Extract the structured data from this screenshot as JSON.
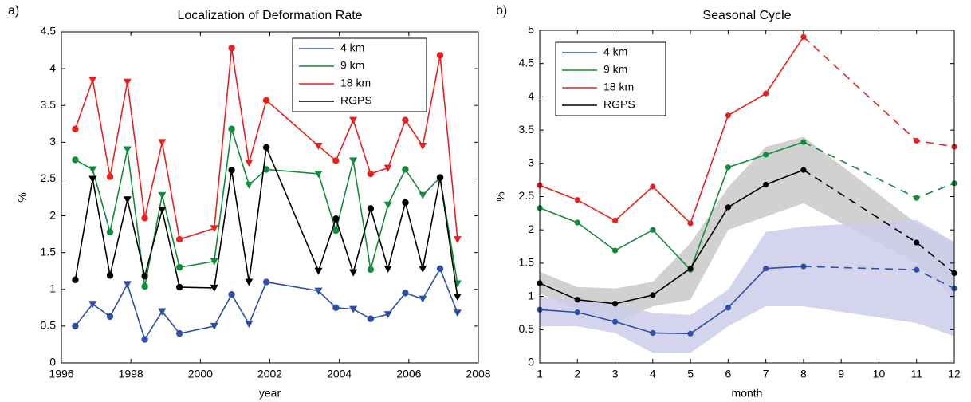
{
  "chart_data": [
    {
      "type": "line",
      "panel_label": "a)",
      "title": "Localization of Deformation Rate",
      "xlabel": "year",
      "ylabel": "%",
      "x": [
        1996.4,
        1996.9,
        1997.4,
        1997.9,
        1998.4,
        1998.9,
        1999.4,
        2000.4,
        2000.9,
        2001.4,
        2001.9,
        2003.4,
        2003.9,
        2004.4,
        2004.9,
        2005.4,
        2005.9,
        2006.4,
        2006.9,
        2007.4
      ],
      "xlim": [
        1996,
        2008
      ],
      "xticks": [
        1996,
        1998,
        2000,
        2002,
        2004,
        2006,
        2008
      ],
      "ylim": [
        0,
        4.5
      ],
      "yticks": [
        0,
        0.5,
        1,
        1.5,
        2,
        2.5,
        3,
        3.5,
        4,
        4.5
      ],
      "legend": "upper right",
      "series": [
        {
          "name": "4 km",
          "color": "#2e4fa8",
          "values": [
            0.5,
            0.8,
            0.63,
            1.07,
            0.32,
            0.7,
            0.4,
            0.5,
            0.93,
            0.53,
            1.1,
            0.98,
            0.75,
            0.73,
            0.6,
            0.66,
            0.95,
            0.87,
            1.28,
            0.68
          ]
        },
        {
          "name": "9 km",
          "color": "#128a3c",
          "values": [
            2.76,
            2.63,
            1.78,
            2.9,
            1.04,
            2.28,
            1.3,
            1.38,
            3.18,
            2.42,
            2.63,
            2.57,
            1.8,
            2.75,
            1.27,
            2.15,
            2.63,
            2.28,
            2.52,
            1.08
          ]
        },
        {
          "name": "18 km",
          "color": "#e8211f",
          "values": [
            3.18,
            3.85,
            2.53,
            3.82,
            1.97,
            3.0,
            1.68,
            1.83,
            4.28,
            2.72,
            3.57,
            2.95,
            2.75,
            3.3,
            2.57,
            2.65,
            3.3,
            2.95,
            4.18,
            1.68
          ]
        },
        {
          "name": "RGPS",
          "color": "#000000",
          "values": [
            1.13,
            2.5,
            1.19,
            2.22,
            1.18,
            2.08,
            1.03,
            1.02,
            2.62,
            1.1,
            2.93,
            1.25,
            1.96,
            1.23,
            2.1,
            1.28,
            2.18,
            1.28,
            2.52,
            0.9
          ]
        }
      ]
    },
    {
      "type": "line",
      "panel_label": "b)",
      "title": "Seasonal Cycle",
      "xlabel": "month",
      "ylabel": "%",
      "x": [
        1,
        2,
        3,
        4,
        5,
        6,
        7,
        8,
        11,
        12
      ],
      "xlim": [
        1,
        12
      ],
      "xticks": [
        1,
        2,
        3,
        4,
        5,
        6,
        7,
        8,
        9,
        10,
        11,
        12
      ],
      "ylim": [
        0,
        5
      ],
      "yticks": [
        0,
        0.5,
        1,
        1.5,
        2,
        2.5,
        3,
        3.5,
        4,
        4.5,
        5
      ],
      "legend": "upper left",
      "dashed_after": 8,
      "bands": [
        {
          "color": "#c9c9c9",
          "lower": [
            1.05,
            0.8,
            0.6,
            0.85,
            0.95,
            2.0,
            2.2,
            2.4,
            1.5,
            0.95
          ],
          "upper": [
            1.37,
            1.14,
            1.12,
            1.22,
            1.8,
            2.64,
            3.25,
            3.4,
            2.1,
            1.8
          ]
        },
        {
          "color": "#cdcdea",
          "lower": [
            0.55,
            0.55,
            0.45,
            0.15,
            0.15,
            0.55,
            0.85,
            0.85,
            0.6,
            0.4
          ],
          "upper": [
            1.0,
            0.95,
            0.9,
            0.75,
            0.72,
            1.1,
            1.97,
            2.05,
            2.15,
            1.82
          ]
        }
      ],
      "series": [
        {
          "name": "4 km",
          "color": "#2e4fa8",
          "values": [
            0.8,
            0.76,
            0.62,
            0.45,
            0.44,
            0.83,
            1.42,
            1.45,
            1.4,
            1.12
          ]
        },
        {
          "name": "9 km",
          "color": "#128a3c",
          "values": [
            2.33,
            2.11,
            1.69,
            2.0,
            1.4,
            2.94,
            3.13,
            3.32,
            2.48,
            2.7
          ]
        },
        {
          "name": "18 km",
          "color": "#e8211f",
          "values": [
            2.67,
            2.45,
            2.14,
            2.65,
            2.1,
            3.72,
            4.05,
            4.9,
            3.34,
            3.25
          ]
        },
        {
          "name": "RGPS",
          "color": "#000000",
          "values": [
            1.2,
            0.95,
            0.89,
            1.02,
            1.42,
            2.34,
            2.68,
            2.9,
            1.81,
            1.35
          ]
        }
      ]
    }
  ]
}
